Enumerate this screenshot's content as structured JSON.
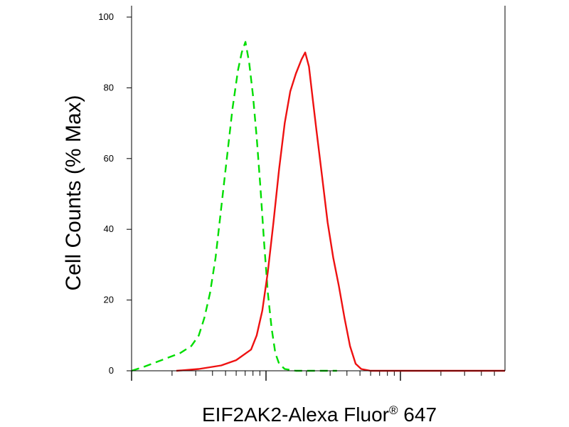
{
  "chart_data": {
    "type": "line",
    "title": "",
    "xlabel": "EIF2AK2-Alexa Fluor",
    "xlabel_superscript": "®",
    "xlabel_suffix": " 647",
    "ylabel": "Cell Counts (% Max)",
    "x_scale": "log",
    "x_axis_tick_labels": "none",
    "y_ticks": [
      "0",
      "20",
      "40",
      "60",
      "80",
      "100"
    ],
    "ylim": [
      0,
      100
    ],
    "grid": false,
    "legend": "none",
    "series": [
      {
        "color": "#00dd00",
        "style": "dashed",
        "points": [
          [
            0.0,
            0
          ],
          [
            0.03,
            1
          ],
          [
            0.08,
            3
          ],
          [
            0.13,
            5
          ],
          [
            0.16,
            7
          ],
          [
            0.18,
            10
          ],
          [
            0.195,
            15
          ],
          [
            0.21,
            22
          ],
          [
            0.225,
            32
          ],
          [
            0.24,
            46
          ],
          [
            0.255,
            60
          ],
          [
            0.27,
            74
          ],
          [
            0.285,
            85
          ],
          [
            0.295,
            90
          ],
          [
            0.305,
            93
          ],
          [
            0.315,
            87
          ],
          [
            0.325,
            78
          ],
          [
            0.335,
            66
          ],
          [
            0.345,
            52
          ],
          [
            0.355,
            36
          ],
          [
            0.365,
            22
          ],
          [
            0.375,
            12
          ],
          [
            0.385,
            5
          ],
          [
            0.395,
            2
          ],
          [
            0.41,
            0.5
          ],
          [
            0.44,
            0
          ],
          [
            0.55,
            0
          ]
        ]
      },
      {
        "color": "#ee1111",
        "style": "solid",
        "points": [
          [
            0.12,
            0
          ],
          [
            0.18,
            0.5
          ],
          [
            0.24,
            1.5
          ],
          [
            0.28,
            3
          ],
          [
            0.32,
            6
          ],
          [
            0.335,
            10
          ],
          [
            0.35,
            17
          ],
          [
            0.365,
            28
          ],
          [
            0.38,
            42
          ],
          [
            0.395,
            57
          ],
          [
            0.41,
            70
          ],
          [
            0.425,
            79
          ],
          [
            0.44,
            84
          ],
          [
            0.455,
            88
          ],
          [
            0.465,
            90
          ],
          [
            0.475,
            86
          ],
          [
            0.485,
            77
          ],
          [
            0.495,
            68
          ],
          [
            0.51,
            55
          ],
          [
            0.525,
            42
          ],
          [
            0.54,
            32
          ],
          [
            0.555,
            24
          ],
          [
            0.57,
            15
          ],
          [
            0.585,
            7
          ],
          [
            0.6,
            2
          ],
          [
            0.615,
            0.5
          ],
          [
            0.64,
            0
          ],
          [
            1.0,
            0
          ]
        ]
      }
    ]
  }
}
